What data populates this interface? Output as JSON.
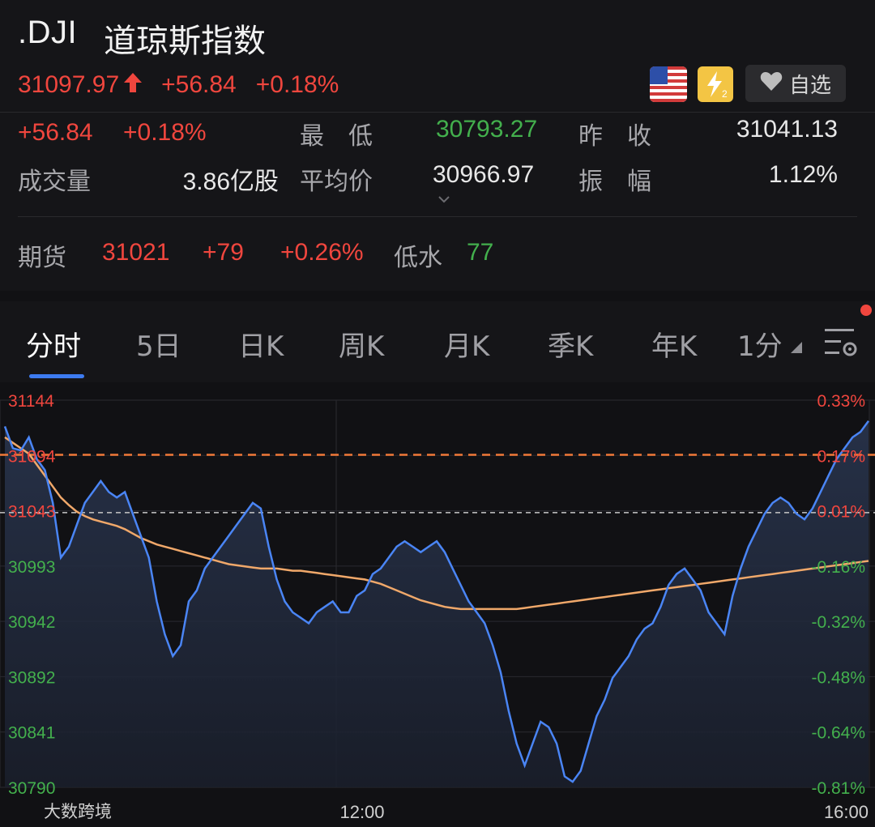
{
  "header": {
    "symbol": ".DJI",
    "name": "道琼斯指数",
    "price": "31097.97",
    "change": "+56.84",
    "change_pct": "+0.18%",
    "watch_label": "自选",
    "flag_icon": "us-flag-icon",
    "level_icon": "level2-icon"
  },
  "stats": {
    "change": "+56.84",
    "change_pct": "+0.18%",
    "low_label": "最　低",
    "low": "30793.27",
    "prev_close_label": "昨　收",
    "prev_close": "31041.13",
    "volume_label": "成交量",
    "volume": "3.86亿股",
    "avg_price_label": "平均价",
    "avg_price": "30966.97",
    "amplitude_label": "振　幅",
    "amplitude": "1.12%",
    "futures_label": "期货",
    "futures_price": "31021",
    "futures_change": "+79",
    "futures_change_pct": "+0.26%",
    "discount_label": "低水",
    "discount": "77"
  },
  "tabs": [
    "分时",
    "5日",
    "日K",
    "周K",
    "月K",
    "季K",
    "年K",
    "1分"
  ],
  "active_tab": "分时",
  "colors": {
    "up": "#f0463e",
    "down": "#43b04d",
    "price_line": "#4a85f5",
    "avg_line": "#f0a86a",
    "accent": "#3d7bf0"
  },
  "chart_data": {
    "type": "line",
    "y_ticks_left": [
      "31144",
      "31094",
      "31043",
      "30993",
      "30942",
      "30892",
      "30841",
      "30790"
    ],
    "y_ticks_right": [
      "0.33%",
      "0.17%",
      "0.01%",
      "-0.16%",
      "-0.32%",
      "-0.48%",
      "-0.64%",
      "-0.81%"
    ],
    "x_ticks": [
      "12:00",
      "16:00"
    ],
    "ylim": [
      30790,
      31144
    ],
    "reference_value": 31041.13,
    "futures_level": 31094,
    "watermark": "大数跨境",
    "series": [
      {
        "values": [
          31120,
          31100,
          31098,
          31110,
          31090,
          31080,
          31050,
          31000,
          31010,
          31030,
          31050,
          31060,
          31070,
          31060,
          31055,
          31060,
          31040,
          31020,
          31000,
          30960,
          30930,
          30910,
          30920,
          30960,
          30970,
          30990,
          31000,
          31010,
          31020,
          31030,
          31040,
          31050,
          31045,
          31010,
          30980,
          30960,
          30950,
          30945,
          30940,
          30950,
          30955,
          30960,
          30950,
          30950,
          30965,
          30970,
          30985,
          30990,
          31000,
          31010,
          31015,
          31010,
          31005,
          31010,
          31015,
          31005,
          30990,
          30975,
          30960,
          30950,
          30940,
          30920,
          30895,
          30860,
          30830,
          30810,
          30830,
          30850,
          30845,
          30830,
          30800,
          30795,
          30805,
          30830,
          30855,
          30870,
          30890,
          30900,
          30910,
          30925,
          30935,
          30940,
          30955,
          30975,
          30985,
          30990,
          30980,
          30970,
          30950,
          30940,
          30930,
          30965,
          30990,
          31010,
          31025,
          31040,
          31050,
          31055,
          31050,
          31040,
          31035,
          31045,
          31060,
          31075,
          31090,
          31100,
          31110,
          31115,
          31125
        ]
      },
      {
        "values": [
          31110,
          31105,
          31100,
          31095,
          31085,
          31075,
          31065,
          31055,
          31048,
          31042,
          31038,
          31035,
          31033,
          31031,
          31029,
          31026,
          31022,
          31018,
          31015,
          31012,
          31010,
          31008,
          31006,
          31004,
          31002,
          31000,
          30998,
          30996,
          30994,
          30993,
          30992,
          30991,
          30990,
          30990,
          30990,
          30989,
          30988,
          30988,
          30987,
          30986,
          30985,
          30984,
          30983,
          30982,
          30981,
          30980,
          30978,
          30976,
          30973,
          30970,
          30967,
          30964,
          30961,
          30959,
          30957,
          30955,
          30954,
          30953,
          30953,
          30953,
          30953,
          30953,
          30953,
          30953,
          30953,
          30954,
          30955,
          30956,
          30957,
          30958,
          30959,
          30960,
          30961,
          30962,
          30963,
          30964,
          30965,
          30966,
          30967,
          30968,
          30969,
          30970,
          30971,
          30972,
          30973,
          30974,
          30975,
          30976,
          30977,
          30978,
          30979,
          30980,
          30981,
          30982,
          30983,
          30984,
          30985,
          30986,
          30987,
          30988,
          30989,
          30990,
          30991,
          30992,
          30993,
          30994,
          30995,
          30996,
          30997
        ]
      }
    ]
  }
}
